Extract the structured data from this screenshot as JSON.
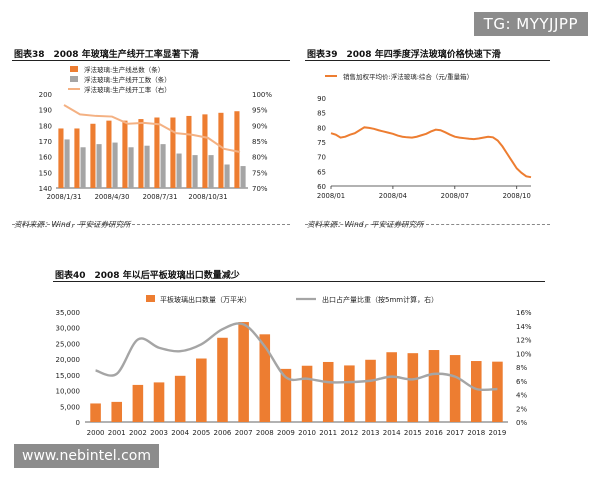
{
  "watermarks": {
    "top_right": "TG: MYYJJPP",
    "bottom_left": "www.nebintel.com"
  },
  "panels": {
    "p38": {
      "title": "图表38　2008 年玻璃生产线开工率显著下滑",
      "source": "资料来源：Wind，平安证券研究所"
    },
    "p39": {
      "title": "图表39　2008 年四季度浮法玻璃价格快速下滑",
      "source": "资料来源：Wind，平安证券研究所"
    },
    "p40": {
      "title": "图表40　2008 年以后平板玻璃出口数量减少"
    }
  },
  "colors": {
    "orange": "#ed7d31",
    "gray": "#a5a5a5",
    "peach": "#f4b183"
  },
  "chart_data": [
    {
      "id": "chart38",
      "type": "bar",
      "legend": [
        "浮法玻璃:生产线总数（条）",
        "浮法玻璃:生产线开工数（条）",
        "浮法玻璃:生产线开工率（右）"
      ],
      "x_tick_labels": [
        "2008/1/31",
        "2008/4/30",
        "2008/7/31",
        "2008/10/31"
      ],
      "y_left": {
        "min": 140,
        "max": 200,
        "ticks": [
          "140",
          "150",
          "160",
          "170",
          "180",
          "190",
          "200"
        ]
      },
      "y_right": {
        "min": 70,
        "max": 100,
        "ticks": [
          "70%",
          "75%",
          "80%",
          "85%",
          "90%",
          "95%",
          "100%"
        ]
      },
      "series": [
        {
          "name": "浮法玻璃:生产线总数（条）",
          "axis": "left",
          "kind": "bar",
          "values": [
            178,
            178,
            181,
            183,
            183,
            184,
            185,
            185,
            186,
            187,
            188,
            189
          ]
        },
        {
          "name": "浮法玻璃:生产线开工数（条）",
          "axis": "left",
          "kind": "bar",
          "values": [
            171,
            166,
            168,
            169,
            166,
            167,
            168,
            162,
            161,
            161,
            155,
            154
          ]
        },
        {
          "name": "浮法玻璃:生产线开工率（右）",
          "axis": "right",
          "kind": "line",
          "values": [
            96.5,
            93.5,
            93,
            92.8,
            90.5,
            90.8,
            90.3,
            87.5,
            87,
            86,
            82.5,
            81.5
          ]
        }
      ]
    },
    {
      "id": "chart39",
      "type": "line",
      "legend": [
        "销售加权平均价:浮法玻璃:综合（元/重量箱）"
      ],
      "x_tick_labels": [
        "2008/01",
        "2008/04",
        "2008/07",
        "2008/10"
      ],
      "x_tick_positions": [
        0,
        13,
        26,
        39
      ],
      "y": {
        "min": 60,
        "max": 90,
        "ticks": [
          "60",
          "65",
          "70",
          "75",
          "80",
          "85",
          "90"
        ]
      },
      "series": [
        {
          "name": "销售加权平均价:浮法玻璃:综合（元/重量箱）",
          "values": [
            78,
            77.5,
            76.5,
            76.8,
            77.5,
            78,
            79,
            80,
            79.8,
            79.5,
            79,
            78.6,
            78.2,
            77.8,
            77.2,
            76.8,
            76.6,
            76.5,
            76.8,
            77.3,
            77.8,
            78.6,
            79.2,
            79,
            78.3,
            77.5,
            76.8,
            76.5,
            76.3,
            76.1,
            76,
            76.2,
            76.5,
            76.8,
            76.6,
            75.5,
            73.5,
            71,
            68.5,
            66,
            64.5,
            63.3,
            63
          ]
        }
      ]
    },
    {
      "id": "chart40",
      "type": "bar",
      "legend": [
        "平板玻璃出口数量（万平米）",
        "出口占产量比重（按5mm计算，右）"
      ],
      "categories": [
        "2000",
        "2001",
        "2002",
        "2003",
        "2004",
        "2005",
        "2006",
        "2007",
        "2008",
        "2009",
        "2010",
        "2011",
        "2012",
        "2013",
        "2014",
        "2015",
        "2016",
        "2017",
        "2018",
        "2019"
      ],
      "y_left": {
        "min": 0,
        "max": 35000,
        "ticks": [
          "0",
          "5,000",
          "10,000",
          "15,000",
          "20,000",
          "25,000",
          "30,000",
          "35,000"
        ]
      },
      "y_right": {
        "min": 0,
        "max": 16,
        "ticks": [
          "0%",
          "2%",
          "4%",
          "6%",
          "8%",
          "10%",
          "12%",
          "14%",
          "16%"
        ]
      },
      "series": [
        {
          "name": "平板玻璃出口数量（万平米）",
          "axis": "left",
          "kind": "bar",
          "values": [
            5900,
            6400,
            11800,
            12600,
            14700,
            20200,
            26800,
            31800,
            27900,
            16900,
            17900,
            19100,
            18000,
            19800,
            22200,
            21900,
            22900,
            21300,
            19400,
            19200
          ]
        },
        {
          "name": "出口占产量比重（按5mm计算，右）",
          "axis": "right",
          "kind": "line",
          "values": [
            7.5,
            7.0,
            12.0,
            10.8,
            10.3,
            11.3,
            13.5,
            14.2,
            11.0,
            6.5,
            6.3,
            5.8,
            5.8,
            6.0,
            6.6,
            6.2,
            7.0,
            6.6,
            4.8,
            4.8
          ]
        }
      ]
    }
  ]
}
